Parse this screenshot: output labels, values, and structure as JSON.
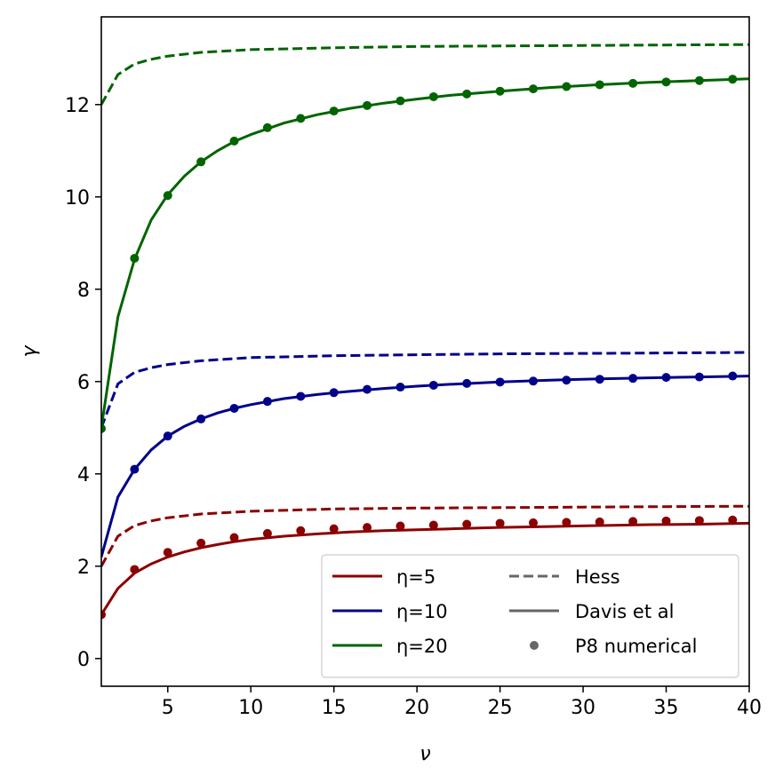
{
  "chart_data": {
    "type": "line",
    "xlabel": "ν",
    "ylabel": "γ",
    "xlim": [
      1,
      40
    ],
    "ylim": [
      -0.6,
      13.9
    ],
    "xticks": [
      5,
      10,
      15,
      20,
      25,
      30,
      35,
      40
    ],
    "yticks": [
      0,
      2,
      4,
      6,
      8,
      10,
      12
    ],
    "grid": false,
    "legend_position": "lower-right",
    "colors": {
      "eta5": "#8b0000",
      "eta10": "#00008b",
      "eta20": "#006400",
      "style_key": "#666666"
    },
    "legend_color_entries": [
      {
        "label": "η=5",
        "color": "#8b0000"
      },
      {
        "label": "η=10",
        "color": "#00008b"
      },
      {
        "label": "η=20",
        "color": "#006400"
      }
    ],
    "legend_style_entries": [
      {
        "label": "Hess",
        "style": "dashed"
      },
      {
        "label": "Davis et al",
        "style": "solid"
      },
      {
        "label": "P8 numerical",
        "style": "marker"
      }
    ],
    "series": [
      {
        "group": "η=5",
        "method": "Hess",
        "style": "dashed",
        "color": "#8b0000",
        "x": [
          1,
          2,
          3,
          4,
          5,
          7,
          10,
          15,
          20,
          25,
          30,
          35,
          40
        ],
        "y": [
          2.0,
          2.65,
          2.88,
          2.98,
          3.05,
          3.13,
          3.19,
          3.24,
          3.26,
          3.27,
          3.28,
          3.29,
          3.3
        ]
      },
      {
        "group": "η=5",
        "method": "Davis et al",
        "style": "solid",
        "color": "#8b0000",
        "x": [
          1,
          2,
          3,
          4,
          5,
          6,
          7,
          8,
          9,
          10,
          12,
          14,
          16,
          18,
          20,
          22,
          25,
          28,
          31,
          34,
          37,
          40
        ],
        "y": [
          0.95,
          1.52,
          1.85,
          2.05,
          2.2,
          2.31,
          2.4,
          2.47,
          2.53,
          2.58,
          2.65,
          2.7,
          2.74,
          2.77,
          2.79,
          2.81,
          2.84,
          2.86,
          2.88,
          2.9,
          2.91,
          2.93
        ]
      },
      {
        "group": "η=5",
        "method": "P8 numerical",
        "style": "marker",
        "color": "#8b0000",
        "x": [
          1,
          3,
          5,
          7,
          9,
          11,
          13,
          15,
          17,
          19,
          21,
          23,
          25,
          27,
          29,
          31,
          33,
          35,
          37,
          39
        ],
        "y": [
          0.95,
          1.93,
          2.3,
          2.5,
          2.62,
          2.71,
          2.77,
          2.81,
          2.84,
          2.87,
          2.89,
          2.91,
          2.93,
          2.94,
          2.95,
          2.96,
          2.97,
          2.98,
          2.99,
          3.0
        ]
      },
      {
        "group": "η=10",
        "method": "Hess",
        "style": "dashed",
        "color": "#00008b",
        "x": [
          1,
          2,
          3,
          4,
          5,
          7,
          10,
          15,
          20,
          25,
          30,
          35,
          40
        ],
        "y": [
          5.0,
          5.95,
          6.2,
          6.3,
          6.37,
          6.45,
          6.52,
          6.56,
          6.58,
          6.6,
          6.61,
          6.62,
          6.63
        ]
      },
      {
        "group": "η=10",
        "method": "Davis et al",
        "style": "solid",
        "color": "#00008b",
        "x": [
          1,
          2,
          3,
          4,
          5,
          6,
          7,
          8,
          9,
          10,
          12,
          14,
          16,
          18,
          20,
          22,
          25,
          28,
          31,
          34,
          37,
          40
        ],
        "y": [
          2.2,
          3.5,
          4.1,
          4.52,
          4.82,
          5.03,
          5.19,
          5.32,
          5.42,
          5.5,
          5.63,
          5.72,
          5.79,
          5.85,
          5.9,
          5.94,
          5.99,
          6.03,
          6.06,
          6.08,
          6.1,
          6.12
        ]
      },
      {
        "group": "η=10",
        "method": "P8 numerical",
        "style": "marker",
        "color": "#00008b",
        "x": [
          3,
          5,
          7,
          9,
          11,
          13,
          15,
          17,
          19,
          21,
          23,
          25,
          27,
          29,
          31,
          33,
          35,
          37,
          39
        ],
        "y": [
          4.1,
          4.82,
          5.19,
          5.42,
          5.57,
          5.68,
          5.76,
          5.83,
          5.88,
          5.92,
          5.96,
          5.99,
          6.01,
          6.03,
          6.05,
          6.07,
          6.09,
          6.1,
          6.12
        ]
      },
      {
        "group": "η=20",
        "method": "Hess",
        "style": "dashed",
        "color": "#006400",
        "x": [
          1,
          2,
          3,
          4,
          5,
          7,
          10,
          15,
          20,
          25,
          30,
          35,
          40
        ],
        "y": [
          12.0,
          12.65,
          12.88,
          12.98,
          13.05,
          13.13,
          13.19,
          13.23,
          13.26,
          13.27,
          13.28,
          13.29,
          13.3
        ]
      },
      {
        "group": "η=20",
        "method": "Davis et al",
        "style": "solid",
        "color": "#006400",
        "x": [
          1,
          2,
          3,
          4,
          5,
          6,
          7,
          8,
          9,
          10,
          12,
          14,
          16,
          18,
          20,
          22,
          25,
          28,
          31,
          34,
          37,
          40
        ],
        "y": [
          5.0,
          7.4,
          8.65,
          9.5,
          10.05,
          10.45,
          10.76,
          11.0,
          11.2,
          11.35,
          11.6,
          11.78,
          11.92,
          12.03,
          12.12,
          12.2,
          12.29,
          12.37,
          12.43,
          12.48,
          12.52,
          12.56
        ]
      },
      {
        "group": "η=20",
        "method": "P8 numerical",
        "style": "marker",
        "color": "#006400",
        "x": [
          1,
          3,
          5,
          7,
          9,
          11,
          13,
          15,
          17,
          19,
          21,
          23,
          25,
          27,
          29,
          31,
          33,
          35,
          37,
          39
        ],
        "y": [
          4.98,
          8.67,
          10.03,
          10.76,
          11.21,
          11.5,
          11.7,
          11.86,
          11.98,
          12.08,
          12.17,
          12.23,
          12.29,
          12.34,
          12.39,
          12.43,
          12.46,
          12.49,
          12.52,
          12.55
        ]
      }
    ]
  }
}
